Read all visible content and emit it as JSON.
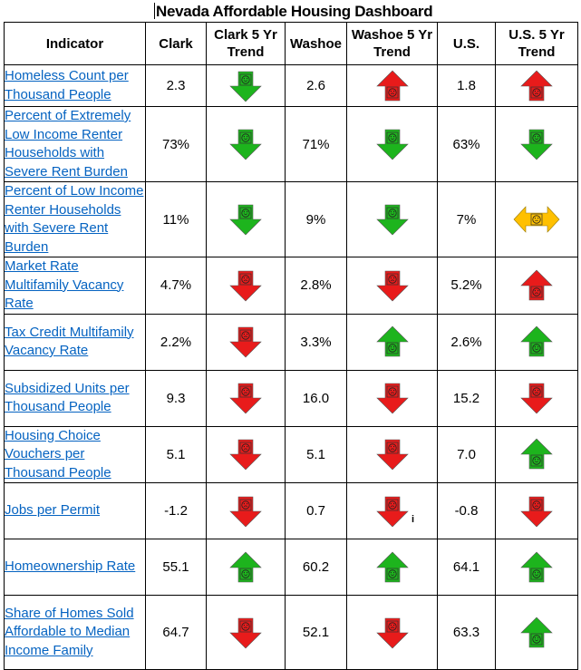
{
  "title": "Nevada Affordable Housing Dashboard",
  "columns": [
    "Indicator",
    "Clark",
    "Clark 5 Yr Trend",
    "Washoe",
    "Washoe 5 Yr Trend",
    "U.S.",
    "U.S. 5 Yr Trend"
  ],
  "colors": {
    "good": "#1db41d",
    "bad": "#e81b1b",
    "neutral": "#ffc000",
    "link": "#0563c1"
  },
  "rows": [
    {
      "indicator": "Homeless Count per Thousand People",
      "clark": "2.3",
      "clark_trend": "down-good",
      "washoe": "2.6",
      "washoe_trend": "up-bad",
      "us": "1.8",
      "us_trend": "up-bad"
    },
    {
      "indicator": "Percent of Extremely Low Income Renter Households with Severe Rent Burden",
      "clark": "73%",
      "clark_trend": "down-good",
      "washoe": "71%",
      "washoe_trend": "down-good",
      "us": "63%",
      "us_trend": "down-good"
    },
    {
      "indicator": "Percent of Low Income Renter Households with Severe Rent Burden",
      "clark": "11%",
      "clark_trend": "down-good",
      "washoe": "9%",
      "washoe_trend": "down-good",
      "us": "7%",
      "us_trend": "flat-neutral"
    },
    {
      "indicator": "Market Rate Multifamily Vacancy Rate",
      "clark": "4.7%",
      "clark_trend": "down-bad",
      "washoe": "2.8%",
      "washoe_trend": "down-bad",
      "us": "5.2%",
      "us_trend": "up-bad"
    },
    {
      "indicator": "Tax Credit Multifamily Vacancy Rate",
      "clark": "2.2%",
      "clark_trend": "down-bad",
      "washoe": "3.3%",
      "washoe_trend": "up-good",
      "us": "2.6%",
      "us_trend": "up-good"
    },
    {
      "indicator": "Subsidized Units per Thousand People",
      "clark": "9.3",
      "clark_trend": "down-bad",
      "washoe": "16.0",
      "washoe_trend": "down-bad",
      "us": "15.2",
      "us_trend": "down-bad"
    },
    {
      "indicator": "Housing Choice Vouchers per Thousand People",
      "clark": "5.1",
      "clark_trend": "down-bad",
      "washoe": "5.1",
      "washoe_trend": "down-bad",
      "us": "7.0",
      "us_trend": "up-good"
    },
    {
      "indicator": "Jobs per Permit",
      "clark": "-1.2",
      "clark_trend": "down-bad",
      "washoe": "0.7",
      "washoe_trend": "down-bad",
      "washoe_note": "i",
      "us": "-0.8",
      "us_trend": "down-bad"
    },
    {
      "indicator": "Homeownership Rate",
      "clark": "55.1",
      "clark_trend": "up-good",
      "washoe": "60.2",
      "washoe_trend": "up-good",
      "us": "64.1",
      "us_trend": "up-good"
    },
    {
      "indicator": "Share of Homes Sold Affordable to Median Income Family",
      "clark": "64.7",
      "clark_trend": "down-bad",
      "washoe": "52.1",
      "washoe_trend": "down-bad",
      "us": "63.3",
      "us_trend": "up-good"
    }
  ]
}
